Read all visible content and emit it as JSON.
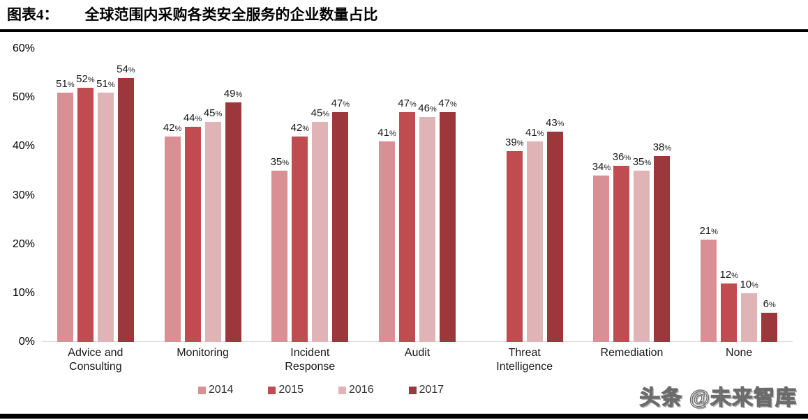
{
  "title": {
    "prefix": "图表4：",
    "text": "全球范围内采购各类安全服务的企业数量占比"
  },
  "watermark": {
    "text": "头条 @未来智库"
  },
  "chart_data": {
    "type": "bar",
    "title": "全球范围内采购各类安全服务的企业数量占比",
    "categories": [
      "Advice and Consulting",
      "Monitoring",
      "Incident Response",
      "Audit",
      "Threat Intelligence",
      "Remediation",
      "None"
    ],
    "series": [
      {
        "name": "2014",
        "color": "#D99094",
        "values": [
          51,
          42,
          35,
          41,
          null,
          34,
          21
        ]
      },
      {
        "name": "2015",
        "color": "#C04B50",
        "values": [
          52,
          44,
          42,
          47,
          39,
          36,
          12
        ]
      },
      {
        "name": "2016",
        "color": "#E0B4B6",
        "values": [
          51,
          45,
          45,
          46,
          41,
          35,
          10
        ]
      },
      {
        "name": "2017",
        "color": "#9C383C",
        "values": [
          54,
          49,
          47,
          47,
          43,
          38,
          6
        ]
      }
    ],
    "ylim": [
      0,
      60
    ],
    "ytick_step": 10,
    "ytick_labels": [
      "0%",
      "10%",
      "20%",
      "30%",
      "40%",
      "50%",
      "60%"
    ],
    "value_label_suffix": "%",
    "grid": false,
    "legend_position": "bottom",
    "baseline_color": "#d6d6d6"
  }
}
